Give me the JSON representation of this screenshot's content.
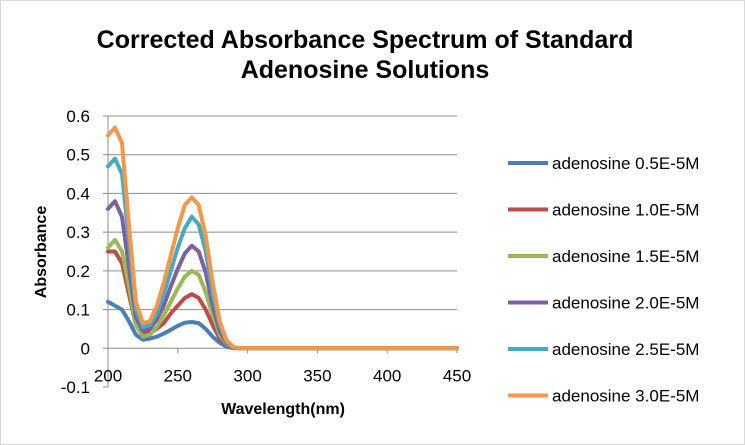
{
  "chart_data": {
    "type": "line",
    "title": [
      "Corrected Absorbance Spectrum of Standard",
      "Adenosine Solutions"
    ],
    "xlabel": "Wavelength(nm)",
    "ylabel": "Absorbance",
    "xlim": [
      200,
      450
    ],
    "ylim": [
      -0.1,
      0.6
    ],
    "xticks": [
      "200",
      "250",
      "300",
      "350",
      "400",
      "450"
    ],
    "xtick_values": [
      200,
      250,
      300,
      350,
      400,
      450
    ],
    "yticks": [
      "0.6",
      "0.5",
      "0.4",
      "0.3",
      "0.2",
      "0.1",
      "0",
      "-0.1"
    ],
    "ytick_values": [
      0.6,
      0.5,
      0.4,
      0.3,
      0.2,
      0.1,
      0,
      -0.1
    ],
    "grid": true,
    "legend": "right",
    "x": [
      200,
      205,
      210,
      215,
      220,
      225,
      230,
      235,
      240,
      245,
      250,
      255,
      260,
      265,
      270,
      275,
      280,
      285,
      290,
      295,
      300,
      450
    ],
    "series": [
      {
        "name": "adenosine 0.5E-5M",
        "color": "#4a7ebb",
        "values": [
          0.12,
          0.11,
          0.1,
          0.07,
          0.035,
          0.022,
          0.025,
          0.03,
          0.038,
          0.048,
          0.058,
          0.066,
          0.068,
          0.065,
          0.05,
          0.03,
          0.014,
          0.004,
          0,
          0,
          0,
          0
        ]
      },
      {
        "name": "adenosine 1.0E-5M",
        "color": "#be4b48",
        "values": [
          0.25,
          0.25,
          0.22,
          0.14,
          0.06,
          0.035,
          0.04,
          0.05,
          0.065,
          0.09,
          0.11,
          0.13,
          0.14,
          0.13,
          0.1,
          0.06,
          0.025,
          0.008,
          0.002,
          0,
          0,
          0
        ]
      },
      {
        "name": "adenosine 1.5E-5M",
        "color": "#98b954",
        "values": [
          0.26,
          0.28,
          0.25,
          0.16,
          0.06,
          0.03,
          0.035,
          0.055,
          0.085,
          0.12,
          0.155,
          0.185,
          0.2,
          0.19,
          0.145,
          0.085,
          0.035,
          0.01,
          0.002,
          0,
          0,
          0
        ]
      },
      {
        "name": "adenosine 2.0E-5M",
        "color": "#7d60a0",
        "values": [
          0.36,
          0.38,
          0.34,
          0.21,
          0.08,
          0.045,
          0.05,
          0.075,
          0.11,
          0.16,
          0.205,
          0.245,
          0.265,
          0.25,
          0.195,
          0.11,
          0.045,
          0.012,
          0.002,
          0,
          0,
          0
        ]
      },
      {
        "name": "adenosine 2.5E-5M",
        "color": "#46aac5",
        "values": [
          0.47,
          0.49,
          0.45,
          0.28,
          0.1,
          0.055,
          0.06,
          0.09,
          0.14,
          0.2,
          0.26,
          0.31,
          0.34,
          0.32,
          0.25,
          0.14,
          0.06,
          0.015,
          0.002,
          0,
          0,
          0
        ]
      },
      {
        "name": "adenosine 3.0E-5M",
        "color": "#f79646",
        "values": [
          0.55,
          0.57,
          0.53,
          0.32,
          0.12,
          0.065,
          0.07,
          0.11,
          0.17,
          0.24,
          0.31,
          0.37,
          0.39,
          0.37,
          0.29,
          0.17,
          0.07,
          0.02,
          0.003,
          0,
          0,
          0
        ]
      }
    ]
  }
}
